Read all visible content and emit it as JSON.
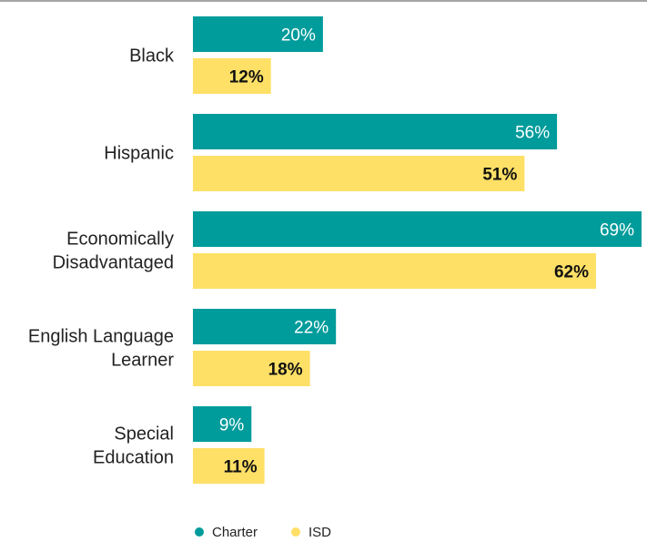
{
  "colors": {
    "charter": "#009B9B",
    "isd": "#FFE066",
    "top_rule": "#888888"
  },
  "chart_data": {
    "type": "bar",
    "orientation": "horizontal",
    "categories": [
      [
        "Black"
      ],
      [
        "Hispanic"
      ],
      [
        "Economically",
        "Disadvantaged"
      ],
      [
        "English Language",
        "Learner"
      ],
      [
        "Special",
        "Education"
      ]
    ],
    "series": [
      {
        "name": "Charter",
        "values": [
          20,
          56,
          69,
          22,
          9
        ],
        "labels": [
          "20%",
          "56%",
          "69%",
          "22%",
          "9%"
        ]
      },
      {
        "name": "ISD",
        "values": [
          12,
          51,
          62,
          18,
          11
        ],
        "labels": [
          "12%",
          "51%",
          "62%",
          "18%",
          "11%"
        ]
      }
    ],
    "xlim": [
      0,
      69
    ],
    "grid": false,
    "legend": "bottom"
  }
}
